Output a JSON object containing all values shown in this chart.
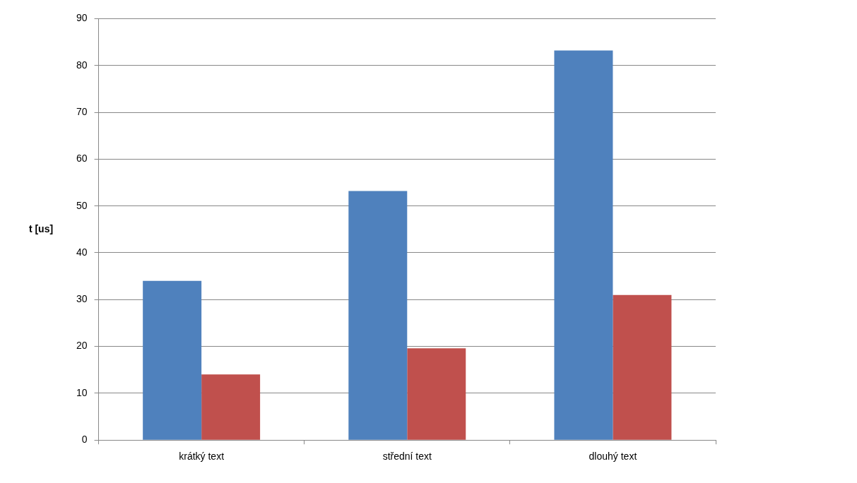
{
  "chart_data": {
    "type": "bar",
    "ylabel": "t [us]",
    "categories": [
      "krátký text",
      "střední text",
      "dlouhý text"
    ],
    "series": [
      {
        "color": "#4f81bd",
        "values": [
          34,
          53.2,
          83.2
        ]
      },
      {
        "color": "#c0504d",
        "values": [
          14,
          19.6,
          31
        ]
      }
    ],
    "ylim": [
      0,
      90
    ],
    "yticks": [
      0,
      10,
      20,
      30,
      40,
      50,
      60,
      70,
      80,
      90
    ],
    "grid": "y"
  }
}
